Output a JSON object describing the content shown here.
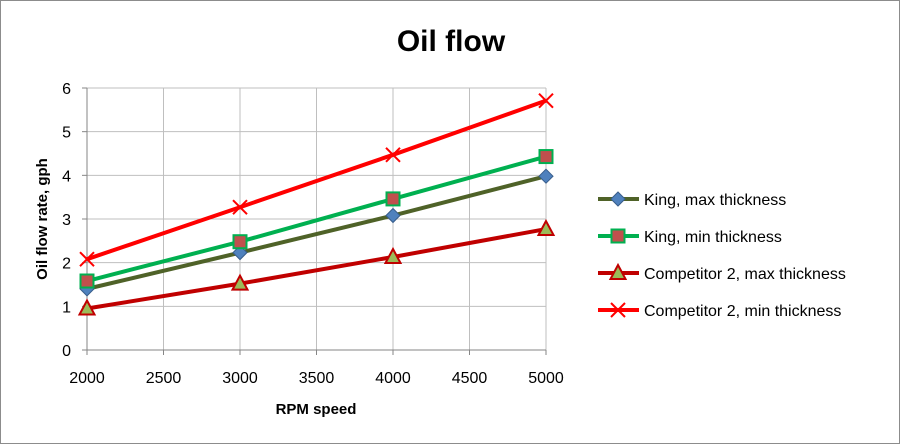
{
  "chart_data": {
    "type": "line",
    "title": "Oil flow",
    "xlabel": "RPM speed",
    "ylabel": "Oil flow rate, gph",
    "xlim": [
      2000,
      5000
    ],
    "ylim": [
      0,
      6
    ],
    "x_ticks": [
      "2000",
      "2500",
      "3000",
      "3500",
      "4000",
      "4500",
      "5000"
    ],
    "y_ticks": [
      "0",
      "1",
      "2",
      "3",
      "4",
      "5",
      "6"
    ],
    "grid": true,
    "legend_position": "right",
    "x": [
      2000,
      3000,
      4000,
      5000
    ],
    "series": [
      {
        "name": "King, max thickness",
        "values": [
          1.4,
          2.23,
          3.08,
          3.98
        ],
        "color": "#4f6228",
        "marker": "diamond",
        "marker_fill": "#4f81bd"
      },
      {
        "name": "King, min thickness",
        "values": [
          1.58,
          2.48,
          3.46,
          4.43
        ],
        "color": "#00b050",
        "marker": "square",
        "marker_fill": "#c0504d"
      },
      {
        "name": "Competitor 2, max thickness",
        "values": [
          0.95,
          1.52,
          2.13,
          2.77
        ],
        "color": "#c00000",
        "marker": "triangle",
        "marker_fill": "#9bbb59"
      },
      {
        "name": "Competitor 2, min thickness",
        "values": [
          2.08,
          3.27,
          4.47,
          5.71
        ],
        "color": "#ff0000",
        "marker": "x",
        "marker_fill": "#ff0000"
      }
    ]
  }
}
